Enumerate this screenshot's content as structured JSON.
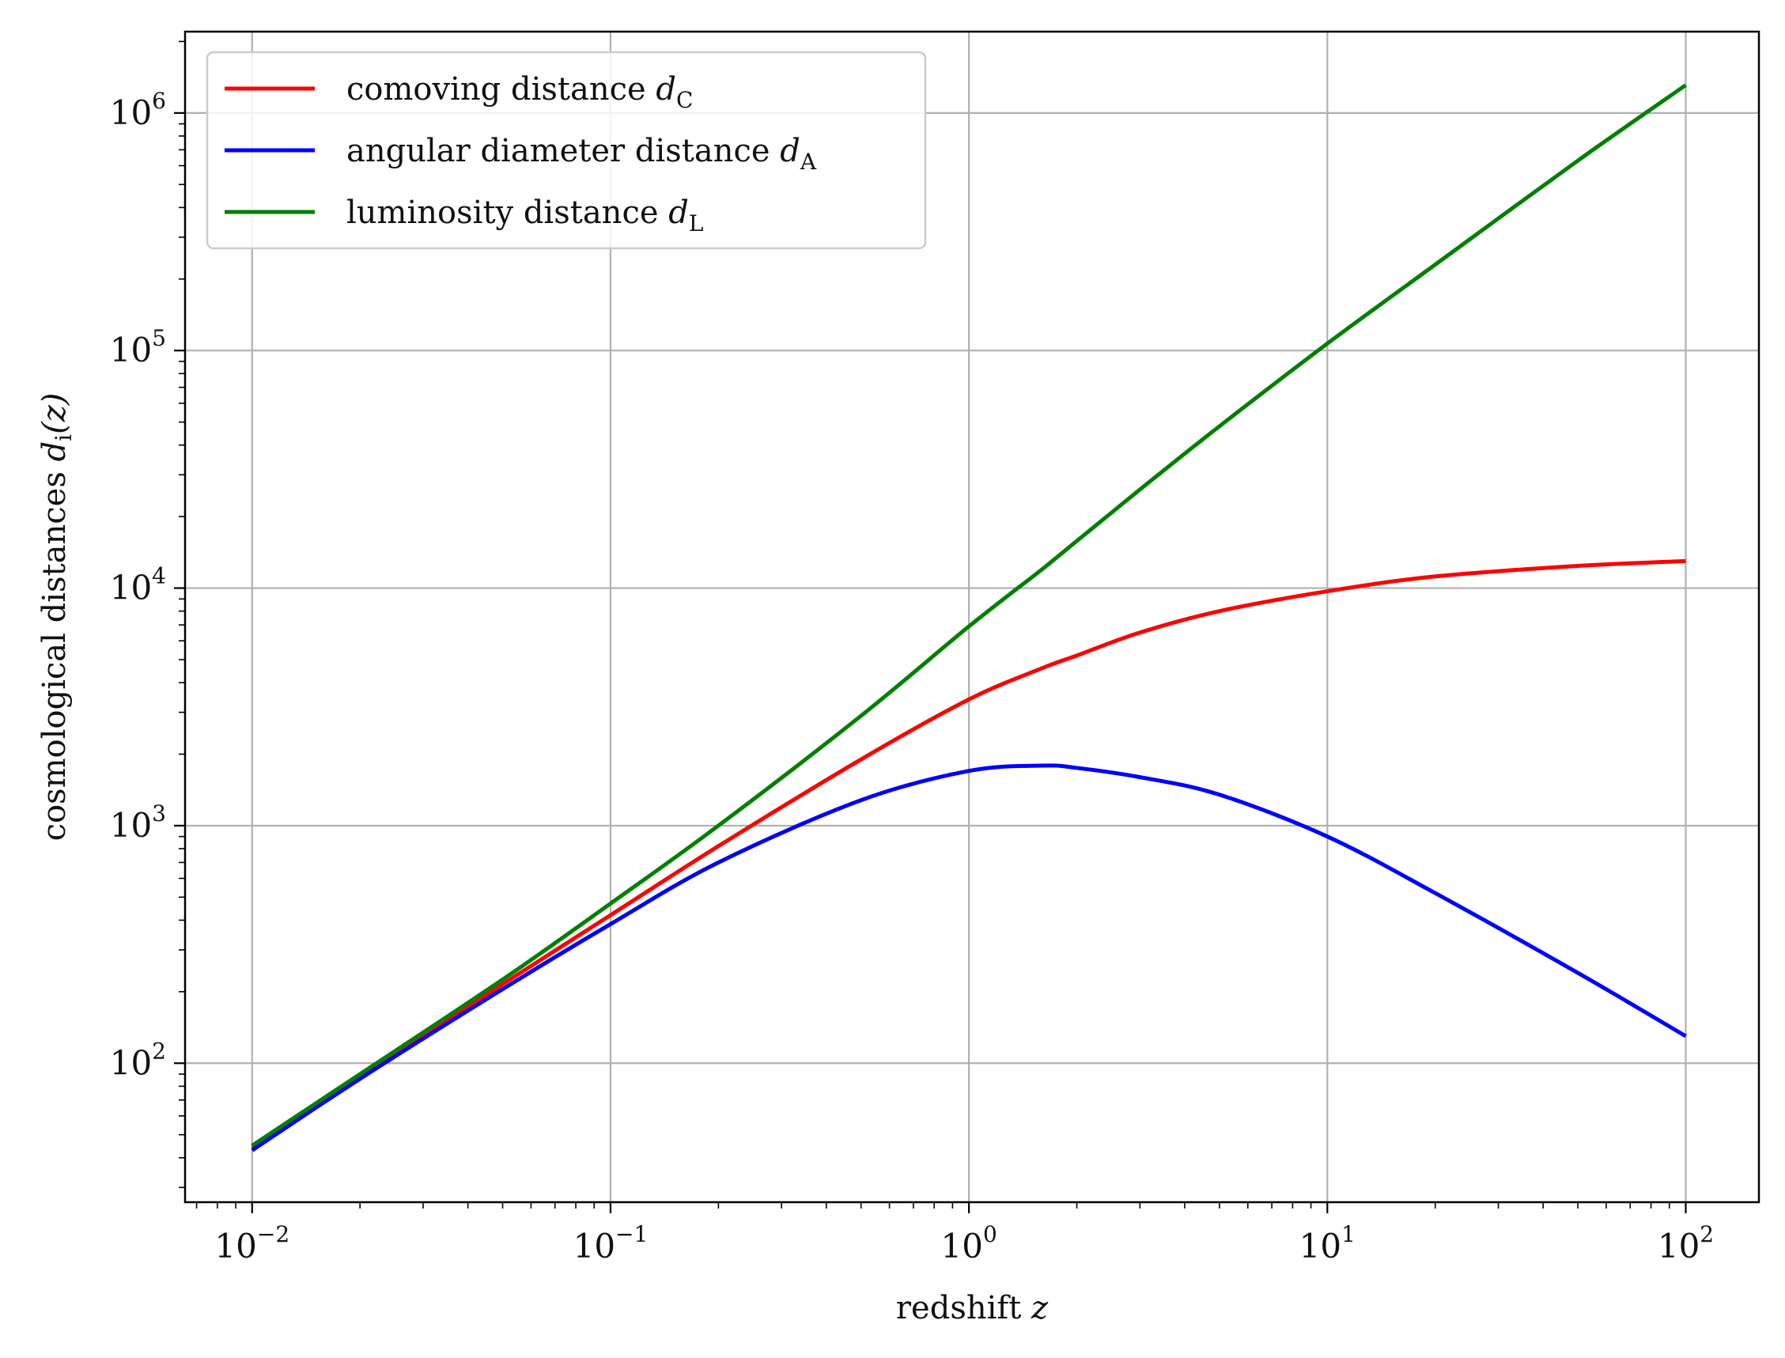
{
  "chart_data": {
    "type": "line",
    "xscale": "log",
    "yscale": "log",
    "xlim": [
      0.0065,
      160
    ],
    "ylim": [
      26,
      2200000
    ],
    "grid": true,
    "legend_position": "top-left",
    "xlabel": {
      "text": "redshift ",
      "var": "z"
    },
    "ylabel": {
      "text": "cosmological distances ",
      "var": "d",
      "sub": "i",
      "suffix": "(z)"
    },
    "x_ticks": [
      {
        "value": 0.01,
        "base": "10",
        "exp": "−2"
      },
      {
        "value": 0.1,
        "base": "10",
        "exp": "−1"
      },
      {
        "value": 1,
        "base": "10",
        "exp": "0"
      },
      {
        "value": 10,
        "base": "10",
        "exp": "1"
      },
      {
        "value": 100,
        "base": "10",
        "exp": "2"
      }
    ],
    "y_ticks": [
      {
        "value": 100,
        "base": "10",
        "exp": "2"
      },
      {
        "value": 1000,
        "base": "10",
        "exp": "3"
      },
      {
        "value": 10000,
        "base": "10",
        "exp": "4"
      },
      {
        "value": 100000,
        "base": "10",
        "exp": "5"
      },
      {
        "value": 1000000,
        "base": "10",
        "exp": "6"
      }
    ],
    "x": [
      0.01,
      0.02,
      0.05,
      0.1,
      0.2,
      0.5,
      1,
      1.6,
      2,
      3,
      5,
      10,
      20,
      50,
      100
    ],
    "series": [
      {
        "name": "comoving distance ",
        "name_var": "d",
        "name_sub": "C",
        "color": "#ff0000",
        "values": [
          44,
          88,
          215,
          420,
          820,
          1900,
          3400,
          4600,
          5200,
          6500,
          8000,
          9700,
          11200,
          12400,
          13000
        ]
      },
      {
        "name": "angular diameter distance ",
        "name_var": "d",
        "name_sub": "A",
        "color": "#0000ff",
        "values": [
          43,
          86,
          205,
          385,
          700,
          1280,
          1700,
          1790,
          1750,
          1600,
          1350,
          900,
          520,
          240,
          130
        ]
      },
      {
        "name": "luminosity distance ",
        "name_var": "d",
        "name_sub": "L",
        "color": "#008000",
        "values": [
          45,
          90,
          225,
          470,
          1000,
          2900,
          6900,
          12000,
          15800,
          26000,
          48000,
          107000,
          230000,
          630000,
          1310000
        ]
      }
    ]
  }
}
